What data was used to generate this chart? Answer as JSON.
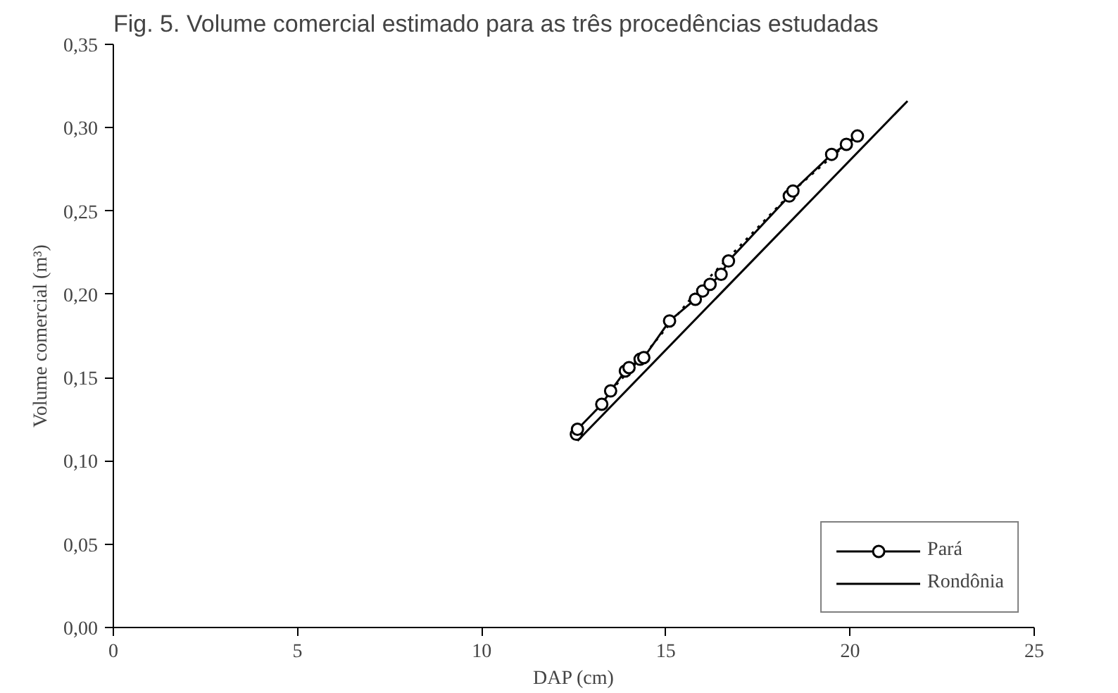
{
  "chart_data": {
    "type": "line",
    "xlabel": "DAP (cm)",
    "ylabel": "Volume comercial (m³)",
    "annotations": [
      "Fig. 5. Volume comercial estimado para as três procedências estudadas"
    ],
    "xlim": [
      0,
      25
    ],
    "xticks": [
      0,
      5,
      10,
      15,
      20,
      25
    ],
    "ylim": [
      0,
      0.35
    ],
    "yticks": [
      {
        "value": 0,
        "label": "0,00"
      },
      {
        "value": 0.05,
        "label": "0,05"
      },
      {
        "value": 0.1,
        "label": "0,10"
      },
      {
        "value": 0.15,
        "label": "0,15"
      },
      {
        "value": 0.2,
        "label": "0,20"
      },
      {
        "value": 0.25,
        "label": "0,25"
      },
      {
        "value": 0.3,
        "label": "0,30"
      },
      {
        "value": 0.35,
        "label": "0,35"
      }
    ],
    "grid": false,
    "legend": "bottom right",
    "series": [
      {
        "color": "#000000",
        "line_style": "dotted",
        "marker": "none",
        "x": [
          13.5,
          14.5,
          16.0,
          18.5,
          20.2
        ],
        "values": [
          0.142,
          0.166,
          0.206,
          0.263,
          0.296
        ]
      },
      {
        "name": "Pará",
        "color": "#000000",
        "line_style": "solid",
        "marker": "circle",
        "x": [
          12.57,
          12.6,
          13.26,
          13.5,
          13.9,
          14.0,
          14.3,
          14.4,
          15.1,
          15.8,
          16.0,
          16.2,
          16.5,
          16.7,
          18.35,
          18.45,
          19.5,
          19.9,
          20.2
        ],
        "values": [
          0.116,
          0.119,
          0.134,
          0.142,
          0.154,
          0.156,
          0.161,
          0.162,
          0.184,
          0.197,
          0.202,
          0.206,
          0.212,
          0.22,
          0.259,
          0.262,
          0.284,
          0.29,
          0.295
        ]
      },
      {
        "name": "Rondônia",
        "color": "#000000",
        "line_style": "solid",
        "marker": "none",
        "x": [
          12.6,
          21.56
        ],
        "values": [
          0.112,
          0.316
        ]
      }
    ]
  }
}
